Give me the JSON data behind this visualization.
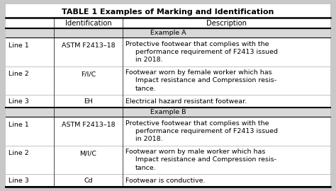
{
  "title": "TABLE 1 Examples of Marking and Identification",
  "bg_color": "#c8c8c8",
  "rows": [
    {
      "type": "section",
      "label": "Example A"
    },
    {
      "type": "data",
      "col0": "Line 1",
      "col1": "ASTM F2413–18",
      "col2": [
        "Protective footwear that complies with the",
        "performance requirement of F2413 issued",
        "in 2018."
      ]
    },
    {
      "type": "data",
      "col0": "Line 2",
      "col1": "F/I/C",
      "col2": [
        "Footwear worn by female worker which has",
        "Impact resistance and Compression resis-",
        "tance."
      ]
    },
    {
      "type": "data",
      "col0": "Line 3",
      "col1": "EH",
      "col2": [
        "Electrical hazard resistant footwear."
      ]
    },
    {
      "type": "section",
      "label": "Example B"
    },
    {
      "type": "data",
      "col0": "Line 1",
      "col1": "ASTM F2413–18",
      "col2": [
        "Protective footwear that complies with the",
        "performance requirement of F2413 issued",
        "in 2018."
      ]
    },
    {
      "type": "data",
      "col0": "Line 2",
      "col1": "M/I/C",
      "col2": [
        "Footwear worn by male worker which has",
        "Impact resistance and Compression resis-",
        "tance."
      ]
    },
    {
      "type": "data",
      "col0": "Line 3",
      "col1": "Cd",
      "col2": [
        "Footwear is conductive."
      ]
    }
  ],
  "title_fontsize": 8.0,
  "body_fontsize": 6.8,
  "header_fontsize": 7.2
}
